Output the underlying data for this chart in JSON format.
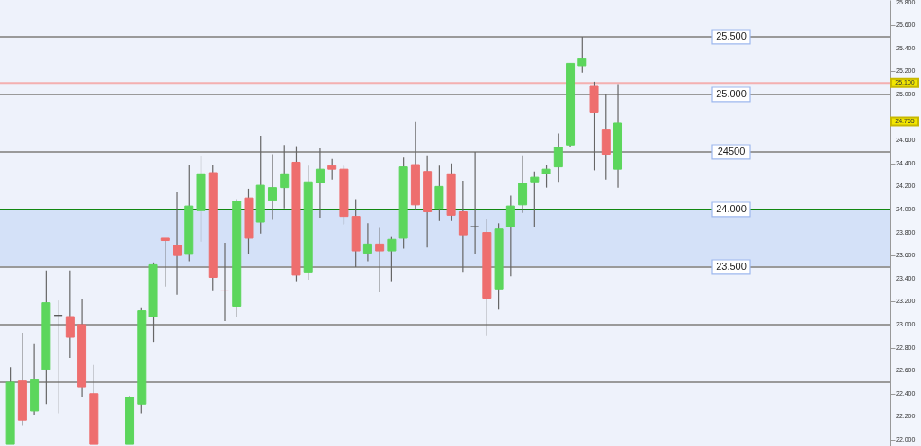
{
  "chart_data": {
    "type": "candlestick",
    "categories": [
      null,
      null,
      null,
      null,
      null,
      null,
      null,
      null,
      null,
      null,
      null,
      null,
      null,
      null,
      null,
      null,
      null,
      null,
      null,
      null,
      null,
      null,
      null,
      null,
      null,
      null,
      null,
      null,
      null,
      null,
      null,
      null,
      null,
      null,
      null,
      null,
      null,
      null,
      null,
      null,
      null,
      null,
      null,
      null,
      null,
      null,
      null,
      null,
      null,
      null,
      null,
      null,
      null,
      null,
      null,
      null,
      null,
      null,
      null,
      null,
      null,
      null,
      null,
      null,
      null,
      null,
      null,
      null,
      null,
      null,
      null,
      null,
      null,
      null
    ],
    "ohlc": [
      [
        21.96,
        22.63,
        21.96,
        22.5
      ],
      [
        22.51,
        22.93,
        22.12,
        22.17
      ],
      [
        22.25,
        22.83,
        22.21,
        22.52
      ],
      [
        22.61,
        23.47,
        22.31,
        23.19
      ],
      [
        23.08,
        23.21,
        22.23,
        23.08
      ],
      [
        23.07,
        23.47,
        22.71,
        22.89
      ],
      [
        23.0,
        23.22,
        22.37,
        22.46
      ],
      [
        22.4,
        22.65,
        21.96,
        21.96
      ],
      null,
      null,
      [
        21.96,
        22.38,
        21.96,
        22.37
      ],
      [
        22.31,
        23.15,
        22.23,
        23.12
      ],
      [
        23.07,
        23.54,
        22.85,
        23.52
      ],
      [
        23.75,
        23.75,
        23.33,
        23.73
      ],
      [
        23.69,
        24.15,
        23.26,
        23.6
      ],
      [
        23.61,
        24.39,
        23.55,
        24.03
      ],
      [
        23.99,
        24.47,
        23.72,
        24.31
      ],
      [
        24.32,
        24.39,
        23.29,
        23.41
      ],
      [
        23.3,
        23.71,
        23.03,
        23.3
      ],
      [
        23.16,
        24.09,
        23.07,
        24.07
      ],
      [
        24.1,
        24.18,
        23.61,
        23.75
      ],
      [
        23.89,
        24.64,
        23.79,
        24.21
      ],
      [
        24.08,
        24.48,
        23.91,
        24.19
      ],
      [
        24.19,
        24.56,
        24.01,
        24.31
      ],
      [
        24.41,
        24.55,
        23.37,
        23.43
      ],
      [
        23.45,
        24.38,
        23.39,
        24.24
      ],
      [
        24.23,
        24.53,
        23.93,
        24.35
      ],
      [
        24.38,
        24.44,
        24.26,
        24.35
      ],
      [
        24.35,
        24.38,
        23.87,
        23.94
      ],
      [
        23.94,
        24.09,
        23.5,
        23.64
      ],
      [
        23.62,
        23.88,
        23.55,
        23.7
      ],
      [
        23.7,
        23.84,
        23.28,
        23.64
      ],
      [
        23.64,
        23.76,
        23.37,
        23.74
      ],
      [
        23.75,
        24.45,
        23.66,
        24.37
      ],
      [
        24.39,
        24.76,
        24.0,
        24.04
      ],
      [
        24.33,
        24.47,
        23.67,
        23.98
      ],
      [
        24.01,
        24.38,
        23.9,
        24.2
      ],
      [
        24.31,
        24.4,
        23.9,
        23.95
      ],
      [
        23.98,
        24.25,
        23.45,
        23.78
      ],
      [
        23.85,
        24.5,
        23.61,
        23.85
      ],
      [
        23.8,
        23.92,
        22.9,
        23.23
      ],
      [
        23.31,
        23.88,
        23.13,
        23.83
      ],
      [
        23.85,
        24.12,
        23.42,
        24.03
      ],
      [
        24.04,
        24.47,
        23.97,
        24.23
      ],
      [
        24.24,
        24.33,
        23.85,
        24.28
      ],
      [
        24.31,
        24.39,
        24.19,
        24.35
      ],
      [
        24.37,
        24.66,
        24.24,
        24.54
      ],
      [
        24.56,
        25.27,
        24.54,
        25.27
      ],
      [
        25.25,
        25.5,
        25.19,
        25.31
      ],
      [
        25.07,
        25.11,
        24.34,
        24.84
      ],
      [
        24.69,
        25.0,
        24.26,
        24.48
      ],
      [
        24.35,
        25.09,
        24.19,
        24.75
      ],
      null,
      null,
      null,
      null,
      null,
      null,
      null,
      null,
      null,
      null,
      null,
      null,
      null,
      null,
      null,
      null,
      null,
      null,
      null,
      null,
      null,
      null
    ],
    "colors": [
      "#5cd65c",
      "#ee6e6e",
      "#5cd65c",
      "#5cd65c",
      "#555555",
      "#ee6e6e",
      "#ee6e6e",
      "#ee6e6e",
      null,
      null,
      "#5cd65c",
      "#5cd65c",
      "#5cd65c",
      "#ee6e6e",
      "#ee6e6e",
      "#5cd65c",
      "#5cd65c",
      "#ee6e6e",
      "#ee6e6e",
      "#5cd65c",
      "#ee6e6e",
      "#5cd65c",
      "#5cd65c",
      "#5cd65c",
      "#ee6e6e",
      "#5cd65c",
      "#5cd65c",
      "#ee6e6e",
      "#ee6e6e",
      "#ee6e6e",
      "#5cd65c",
      "#ee6e6e",
      "#5cd65c",
      "#5cd65c",
      "#ee6e6e",
      "#ee6e6e",
      "#5cd65c",
      "#ee6e6e",
      "#ee6e6e",
      "#555555",
      "#ee6e6e",
      "#5cd65c",
      "#5cd65c",
      "#5cd65c",
      "#5cd65c",
      "#5cd65c",
      "#5cd65c",
      "#5cd65c",
      "#5cd65c",
      "#ee6e6e",
      "#ee6e6e",
      "#5cd65c",
      null,
      null,
      null,
      null,
      null,
      null,
      null,
      null,
      null,
      null,
      null,
      null,
      null,
      null,
      null,
      null,
      null,
      null,
      null,
      null,
      null,
      null
    ],
    "ylim": [
      21.945,
      25.82
    ],
    "yticks": [
      {
        "value": 22.0,
        "label": "22.000"
      },
      {
        "value": 22.2,
        "label": "22.200"
      },
      {
        "value": 22.4,
        "label": "22.400"
      },
      {
        "value": 22.6,
        "label": "22.600"
      },
      {
        "value": 22.8,
        "label": "22.800"
      },
      {
        "value": 23.0,
        "label": "23.000"
      },
      {
        "value": 23.2,
        "label": "23.200"
      },
      {
        "value": 23.4,
        "label": "23.400"
      },
      {
        "value": 23.6,
        "label": "23.600"
      },
      {
        "value": 23.8,
        "label": "23.800"
      },
      {
        "value": 24.0,
        "label": "24.000"
      },
      {
        "value": 24.2,
        "label": "24.200"
      },
      {
        "value": 24.4,
        "label": "24.400"
      },
      {
        "value": 24.6,
        "label": "24.600"
      },
      {
        "value": 24.8,
        "label": null
      },
      {
        "value": 25.0,
        "label": "25.000"
      },
      {
        "value": 25.2,
        "label": "25.200"
      },
      {
        "value": 25.4,
        "label": "25.400"
      },
      {
        "value": 25.6,
        "label": "25.600"
      },
      {
        "value": 25.8,
        "label": "25.800"
      }
    ],
    "ref_lines": [
      {
        "axis": "y",
        "value": 25.5,
        "label": "25.500",
        "color": "#9a9a9a"
      },
      {
        "axis": "y",
        "value": 25.0,
        "label": "25.000",
        "color": "#9a9a9a"
      },
      {
        "axis": "y",
        "value": 24.5,
        "label": "24500",
        "color": "#9a9a9a"
      },
      {
        "axis": "y",
        "value": 24.0,
        "label": "24.000",
        "color": "#118811"
      },
      {
        "axis": "y",
        "value": 23.5,
        "label": "23.500",
        "color": "#9a9a9a"
      },
      {
        "axis": "y",
        "value": 23.0,
        "color": "#9a9a9a"
      },
      {
        "axis": "y",
        "value": 22.5,
        "color": "#9a9a9a"
      },
      {
        "axis": "y",
        "value": 25.1,
        "color": "#f4b0b0"
      }
    ],
    "bands": [
      {
        "axis": "y",
        "from": 23.5,
        "to": 24.0,
        "color": "#cddcf8"
      }
    ],
    "annotations": [
      {
        "text": "25.100",
        "y": 25.1
      },
      {
        "text": "24.765",
        "y": 24.765
      }
    ],
    "grid": false
  }
}
